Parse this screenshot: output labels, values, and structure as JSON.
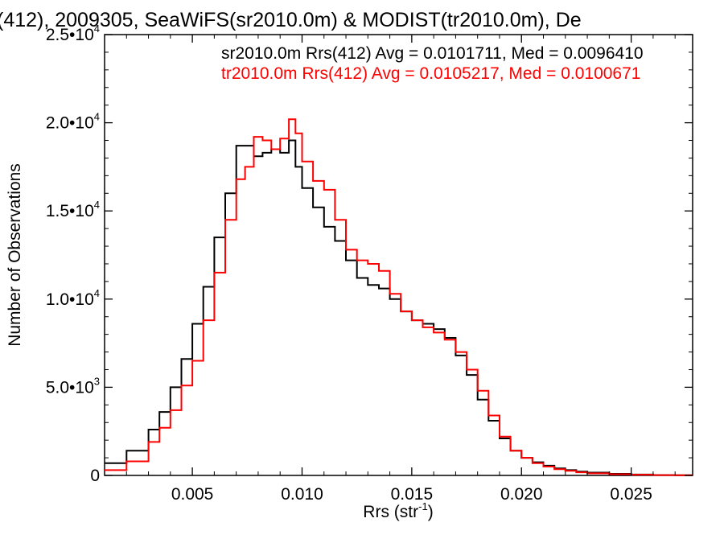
{
  "chart_data": {
    "type": "line",
    "title": "(412), 2009305, SeaWiFS(sr2010.0m) & MODIST(tr2010.0m), De",
    "xlabel": "Rrs (str",
    "xlabel_exp": "-1",
    "xlabel_close": ")",
    "ylabel": "Number of Observations",
    "xlim": [
      0.001,
      0.0278
    ],
    "ylim": [
      0,
      25000
    ],
    "x_ticks": [
      {
        "value": 0.005,
        "label": "0.005"
      },
      {
        "value": 0.01,
        "label": "0.010"
      },
      {
        "value": 0.015,
        "label": "0.015"
      },
      {
        "value": 0.02,
        "label": "0.020"
      },
      {
        "value": 0.025,
        "label": "0.025"
      }
    ],
    "y_ticks": [
      {
        "value": 0,
        "label": "0",
        "exp": ""
      },
      {
        "value": 5000,
        "label": "5.0•10",
        "exp": "3"
      },
      {
        "value": 10000,
        "label": "1.0•10",
        "exp": "4"
      },
      {
        "value": 15000,
        "label": "1.5•10",
        "exp": "4"
      },
      {
        "value": 20000,
        "label": "2.0•10",
        "exp": "4"
      },
      {
        "value": 25000,
        "label": "2.5•10",
        "exp": "4"
      }
    ],
    "step": "histogram",
    "series": [
      {
        "name": "sr2010.0m Rrs(412) Avg = 0.0101711, Med = 0.0096410",
        "color": "#000000",
        "x": [
          0.001,
          0.002,
          0.003,
          0.0035,
          0.004,
          0.0045,
          0.005,
          0.0055,
          0.006,
          0.0065,
          0.007,
          0.0074,
          0.0078,
          0.0082,
          0.0086,
          0.009,
          0.0094,
          0.0097,
          0.01,
          0.0105,
          0.011,
          0.0115,
          0.012,
          0.0125,
          0.013,
          0.0135,
          0.014,
          0.0145,
          0.015,
          0.0155,
          0.016,
          0.0165,
          0.017,
          0.0175,
          0.018,
          0.0185,
          0.019,
          0.0195,
          0.02,
          0.0205,
          0.021,
          0.0215,
          0.022,
          0.0225,
          0.023,
          0.024,
          0.025,
          0.026,
          0.027,
          0.0278
        ],
        "y": [
          700,
          1400,
          2600,
          3600,
          5000,
          6600,
          8600,
          10700,
          13500,
          16000,
          18700,
          18700,
          18100,
          18300,
          18500,
          18300,
          19000,
          17500,
          16300,
          15200,
          14100,
          13300,
          12200,
          11200,
          10800,
          10600,
          10000,
          9300,
          8800,
          8600,
          8300,
          7800,
          6800,
          5700,
          4300,
          3100,
          2100,
          1400,
          1000,
          750,
          550,
          400,
          300,
          220,
          160,
          90,
          50,
          25,
          10,
          0
        ]
      },
      {
        "name": "tr2010.0m Rrs(412) Avg = 0.0105217, Med = 0.0100671",
        "color": "#ff0000",
        "x": [
          0.001,
          0.002,
          0.003,
          0.0035,
          0.004,
          0.0045,
          0.005,
          0.0055,
          0.006,
          0.0065,
          0.007,
          0.0074,
          0.0078,
          0.0082,
          0.0086,
          0.009,
          0.0094,
          0.0097,
          0.01,
          0.0105,
          0.011,
          0.0115,
          0.012,
          0.0125,
          0.013,
          0.0135,
          0.014,
          0.0145,
          0.015,
          0.0155,
          0.016,
          0.0165,
          0.017,
          0.0175,
          0.018,
          0.0185,
          0.019,
          0.0195,
          0.02,
          0.0205,
          0.021,
          0.0215,
          0.022,
          0.0225,
          0.023,
          0.024,
          0.025,
          0.026,
          0.027,
          0.0278
        ],
        "y": [
          300,
          800,
          1900,
          2700,
          3700,
          5100,
          6500,
          8800,
          11500,
          14500,
          16800,
          17500,
          19200,
          19000,
          18500,
          19100,
          20200,
          19400,
          17800,
          16700,
          16200,
          14500,
          12800,
          12200,
          12000,
          11600,
          10300,
          9300,
          8800,
          8400,
          8100,
          7700,
          7000,
          6000,
          4800,
          3400,
          2200,
          1400,
          1000,
          700,
          500,
          350,
          260,
          180,
          120,
          70,
          40,
          20,
          8,
          0
        ]
      }
    ],
    "legend_placement": "top-right",
    "grid": false
  }
}
